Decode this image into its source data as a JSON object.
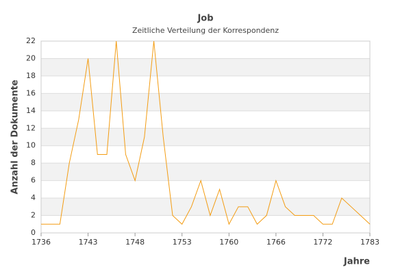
{
  "chart_data": {
    "type": "line",
    "title": "Job",
    "subtitle": "Zeitliche Verteilung der Korrespondenz",
    "x_label": "Jahre",
    "y_label": "Anzahl der Dokumente",
    "categories": [
      "1736",
      null,
      null,
      null,
      null,
      "1743",
      null,
      null,
      null,
      null,
      "1748",
      null,
      null,
      null,
      null,
      "1753",
      null,
      null,
      null,
      null,
      "1760",
      null,
      null,
      null,
      null,
      "1766",
      null,
      null,
      null,
      null,
      "1772",
      null,
      null,
      null,
      null,
      "1783"
    ],
    "series": [
      {
        "name": "Job",
        "color": "#f39c12",
        "values": [
          1,
          1,
          1,
          8,
          13,
          20,
          9,
          9,
          22,
          9,
          6,
          11,
          22,
          11,
          2,
          1,
          3,
          6,
          2,
          5,
          1,
          3,
          3,
          1,
          2,
          6,
          3,
          2,
          2,
          2,
          1,
          1,
          4,
          3,
          2,
          1
        ]
      }
    ],
    "ylim": [
      0,
      22
    ],
    "yticks": [
      0,
      2,
      4,
      6,
      8,
      10,
      12,
      14,
      16,
      18,
      20,
      22
    ],
    "grid": true
  }
}
